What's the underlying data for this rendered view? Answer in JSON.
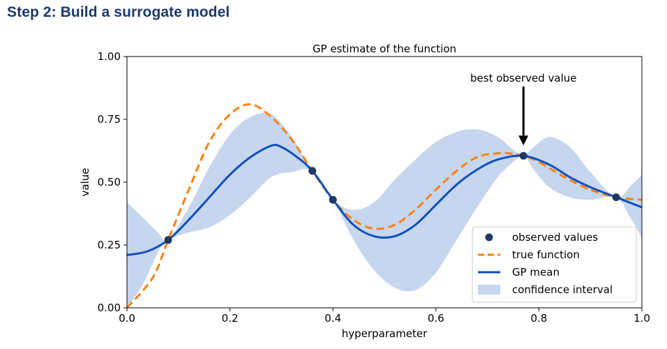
{
  "heading": "Step 2: Build a surrogate model",
  "chart_data": {
    "type": "line",
    "title": "GP estimate of the function",
    "xlabel": "hyperparameter",
    "ylabel": "value",
    "xlim": [
      0,
      1
    ],
    "ylim": [
      0,
      1
    ],
    "x_ticks": [
      0.0,
      0.2,
      0.4,
      0.6,
      0.8,
      1.0
    ],
    "x_tick_labels": [
      "0.0",
      "0.2",
      "0.4",
      "0.6",
      "0.8",
      "1.0"
    ],
    "y_ticks": [
      0.0,
      0.25,
      0.5,
      0.75,
      1.0
    ],
    "y_tick_labels": [
      "0.00",
      "0.25",
      "0.50",
      "0.75",
      "1.00"
    ],
    "legend_position": "bottom-right",
    "legend": [
      "observed values",
      "true function",
      "GP mean",
      "confidence interval"
    ],
    "annotation": {
      "text": "best observed value",
      "x": 0.77,
      "y": 0.605
    },
    "colors": {
      "observed": "#1f3864",
      "true_function": "#ff7f0e",
      "gp_mean": "#0b4fbd",
      "confidence": "#c7d6ef"
    },
    "observed_values": {
      "x": [
        0.08,
        0.36,
        0.4,
        0.77,
        0.95
      ],
      "y": [
        0.27,
        0.545,
        0.43,
        0.605,
        0.44
      ]
    },
    "true_function": {
      "x": [
        0.0,
        0.05,
        0.08,
        0.12,
        0.16,
        0.2,
        0.24,
        0.28,
        0.32,
        0.36,
        0.4,
        0.44,
        0.48,
        0.52,
        0.56,
        0.6,
        0.64,
        0.68,
        0.72,
        0.74,
        0.77,
        0.8,
        0.85,
        0.9,
        0.95,
        1.0
      ],
      "y": [
        0.0,
        0.12,
        0.27,
        0.47,
        0.66,
        0.77,
        0.81,
        0.76,
        0.67,
        0.545,
        0.43,
        0.35,
        0.315,
        0.33,
        0.39,
        0.47,
        0.545,
        0.6,
        0.615,
        0.615,
        0.605,
        0.58,
        0.52,
        0.47,
        0.44,
        0.43
      ]
    },
    "gp_mean": {
      "x": [
        0.0,
        0.04,
        0.08,
        0.12,
        0.16,
        0.2,
        0.24,
        0.28,
        0.3,
        0.33,
        0.36,
        0.4,
        0.44,
        0.48,
        0.52,
        0.56,
        0.6,
        0.64,
        0.68,
        0.72,
        0.77,
        0.82,
        0.86,
        0.9,
        0.95,
        1.0
      ],
      "y": [
        0.21,
        0.225,
        0.27,
        0.35,
        0.44,
        0.53,
        0.6,
        0.645,
        0.64,
        0.6,
        0.545,
        0.43,
        0.33,
        0.285,
        0.285,
        0.33,
        0.41,
        0.49,
        0.55,
        0.59,
        0.605,
        0.57,
        0.52,
        0.48,
        0.44,
        0.4
      ]
    },
    "confidence_upper": {
      "x": [
        0.0,
        0.03,
        0.06,
        0.08,
        0.12,
        0.16,
        0.2,
        0.24,
        0.28,
        0.32,
        0.36,
        0.4,
        0.44,
        0.48,
        0.52,
        0.56,
        0.6,
        0.64,
        0.68,
        0.72,
        0.75,
        0.77,
        0.79,
        0.82,
        0.86,
        0.9,
        0.95,
        0.98,
        1.0
      ],
      "y": [
        0.42,
        0.36,
        0.3,
        0.27,
        0.4,
        0.56,
        0.69,
        0.76,
        0.77,
        0.68,
        0.545,
        0.43,
        0.39,
        0.42,
        0.51,
        0.59,
        0.66,
        0.7,
        0.71,
        0.68,
        0.63,
        0.605,
        0.64,
        0.68,
        0.64,
        0.54,
        0.44,
        0.49,
        0.53
      ]
    },
    "confidence_lower": {
      "x": [
        0.0,
        0.03,
        0.06,
        0.08,
        0.12,
        0.16,
        0.2,
        0.24,
        0.28,
        0.32,
        0.36,
        0.4,
        0.44,
        0.48,
        0.52,
        0.56,
        0.6,
        0.64,
        0.68,
        0.72,
        0.75,
        0.77,
        0.79,
        0.82,
        0.86,
        0.9,
        0.95,
        0.98,
        1.0
      ],
      "y": [
        0.0,
        0.09,
        0.22,
        0.27,
        0.3,
        0.32,
        0.37,
        0.44,
        0.52,
        0.54,
        0.545,
        0.43,
        0.27,
        0.15,
        0.08,
        0.07,
        0.14,
        0.27,
        0.4,
        0.52,
        0.58,
        0.605,
        0.55,
        0.48,
        0.44,
        0.43,
        0.44,
        0.35,
        0.28
      ]
    }
  }
}
